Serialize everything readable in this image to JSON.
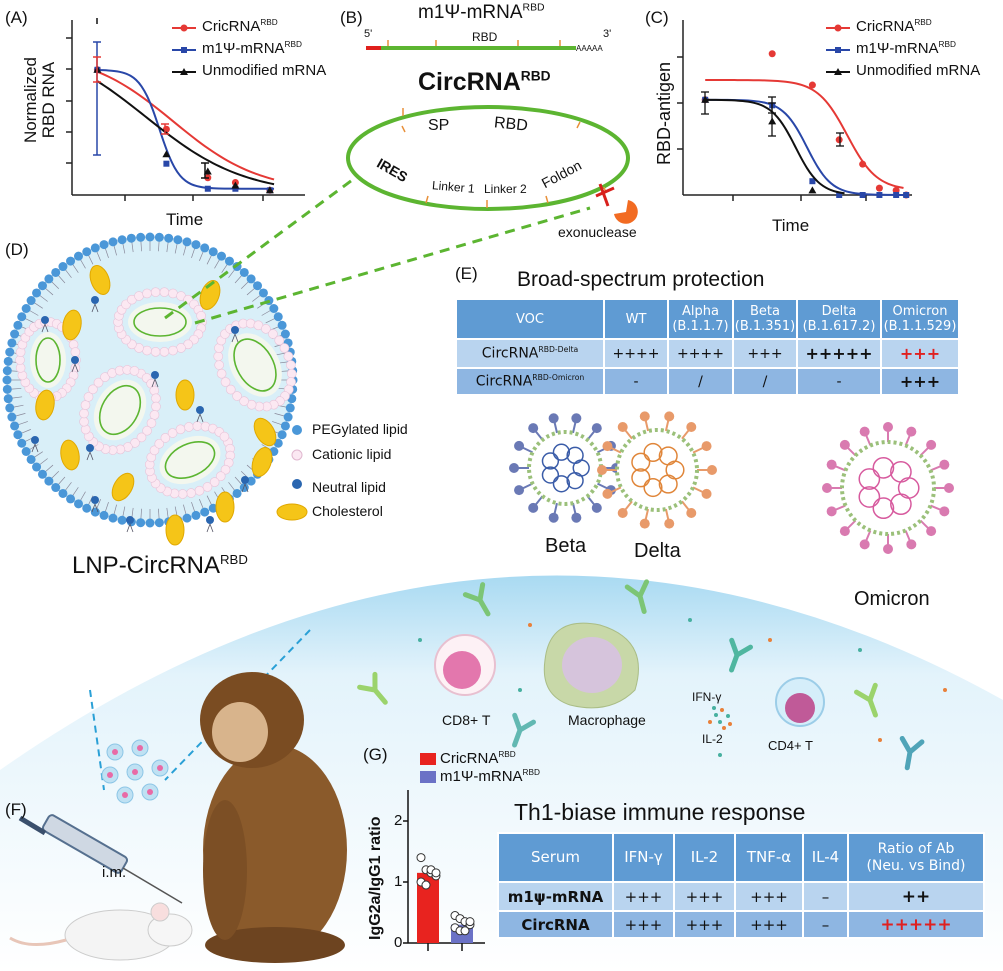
{
  "panels": {
    "a": "(A)",
    "b": "(B)",
    "c": "(C)",
    "d": "(D)",
    "e": "(E)",
    "f": "(F)",
    "g": "(G)"
  },
  "chart_data": [
    {
      "panel": "A",
      "type": "line",
      "xlabel": "Time",
      "ylabel": "Normalized RBD RNA",
      "grid": false,
      "legend": "top-right",
      "series": [
        {
          "name": "CricRNA",
          "name_sup": "RBD",
          "color": "#e53935",
          "marker": "circle",
          "x": [
            0.6,
            1.6,
            2.2,
            2.6,
            3.1
          ],
          "y": [
            4.0,
            2.1,
            0.55,
            0.4,
            0.15
          ]
        },
        {
          "name": "m1Ψ-mRNA",
          "name_sup": "RBD",
          "color": "#2947a8",
          "marker": "square",
          "x": [
            0.6,
            1.6,
            2.2,
            2.6,
            3.1
          ],
          "y": [
            4.0,
            1.0,
            0.2,
            0.2,
            0.15
          ]
        },
        {
          "name": "Unmodified mRNA",
          "name_sup": "",
          "color": "#111111",
          "marker": "triangle",
          "x": [
            0.6,
            1.6,
            2.2,
            2.6,
            3.1
          ],
          "y": [
            4.0,
            1.3,
            0.75,
            0.3,
            0.15
          ]
        }
      ]
    },
    {
      "panel": "C",
      "type": "line",
      "xlabel": "Time",
      "ylabel": "RBD-antigen",
      "grid": false,
      "legend": "top-right",
      "series": [
        {
          "name": "CricRNA",
          "name_sup": "RBD",
          "color": "#e53935",
          "marker": "circle",
          "x": [
            0.6,
            1.6,
            2.2,
            2.6,
            2.95,
            3.2,
            3.45,
            3.6
          ],
          "y": [
            2.07,
            3.07,
            2.39,
            1.2,
            0.67,
            0.15,
            0.1,
            0.0
          ]
        },
        {
          "name": "m1Ψ-mRNA",
          "name_sup": "RBD",
          "color": "#2947a8",
          "marker": "square",
          "x": [
            0.6,
            1.6,
            2.2,
            2.6,
            2.95,
            3.2,
            3.45,
            3.6
          ],
          "y": [
            2.07,
            1.95,
            0.3,
            0,
            0,
            0,
            0,
            0
          ]
        },
        {
          "name": "Unmodified mRNA",
          "name_sup": "",
          "color": "#111111",
          "marker": "triangle",
          "x": [
            0.6,
            1.6,
            2.2
          ],
          "y": [
            2.07,
            1.6,
            0.1
          ]
        }
      ]
    },
    {
      "panel": "G",
      "type": "bar",
      "ylabel": "IgG2a/IgG1 ratio",
      "yticks": [
        "0",
        "1",
        "2"
      ],
      "ylim": [
        0,
        2.5
      ],
      "legend": "top",
      "series": [
        {
          "name": "CricRNA",
          "name_sup": "RBD",
          "color": "#e8231f",
          "value": 1.15,
          "points": [
            1.4,
            1.2,
            1.15,
            1.1,
            1.0,
            0.95,
            1.2,
            1.15
          ]
        },
        {
          "name": "m1Ψ-mRNA",
          "name_sup": "RBD",
          "color": "#6b72c6",
          "value": 0.3,
          "points": [
            0.45,
            0.4,
            0.35,
            0.3,
            0.25,
            0.2,
            0.2,
            0.35
          ]
        }
      ]
    }
  ],
  "b": {
    "mrna_title": "m1Ψ-mRNA",
    "mrna_sup": "RBD",
    "five": "5'",
    "three": "3'",
    "polya": "AAAAA",
    "rbd": "RBD",
    "circ_title": "CircRNA",
    "circ_sup": "RBD",
    "sp": "SP",
    "circ_rbd": "RBD",
    "ires": "IRES",
    "linker1": "Linker 1",
    "linker2": "Linker 2",
    "foldon": "Foldon",
    "exonuclease": "exonuclease"
  },
  "d": {
    "legend": [
      "PEGylated lipid",
      "Cationic lipid",
      "Neutral lipid",
      "Cholesterol"
    ],
    "lnp_label": "LNP-CircRNA",
    "lnp_sup": "RBD"
  },
  "e": {
    "title": "Broad-spectrum protection",
    "header": [
      [
        "VOC",
        ""
      ],
      [
        "WT",
        ""
      ],
      [
        "Alpha",
        "(B.1.1.7)"
      ],
      [
        "Beta",
        "(B.1.351)"
      ],
      [
        "Delta",
        "(B.1.617.2)"
      ],
      [
        "Omicron",
        "(B.1.1.529)"
      ]
    ],
    "rows": [
      {
        "name": "CircRNA",
        "sup": "RBD-Delta",
        "cells": [
          "++++",
          "++++",
          "+++",
          "+++++",
          "+++"
        ]
      },
      {
        "name": "CircRNA",
        "sup": "RBD-Omicron",
        "cells": [
          "-",
          "/",
          "/",
          "-",
          "+++"
        ]
      }
    ],
    "viruses": [
      "Beta",
      "Delta",
      "Omicron"
    ]
  },
  "f": {
    "cells": [
      "CD8+ T",
      "Macrophage",
      "IFN-γ",
      "IL-2",
      "CD4+ T"
    ],
    "route": "i.m."
  },
  "th1": {
    "title": "Th1-biase immune response",
    "header": [
      "Serum",
      "IFN-γ",
      "IL-2",
      "TNF-α",
      "IL-4",
      "Ratio of Ab",
      "(Neu. vs Bind)"
    ],
    "rows": [
      {
        "cells": [
          "m1ψ-mRNA",
          "+++",
          "+++",
          "+++",
          "–",
          "++"
        ]
      },
      {
        "cells": [
          "CircRNA",
          "+++",
          "+++",
          "+++",
          "–",
          "+++++"
        ]
      }
    ]
  },
  "colors": {
    "red": "#e53935",
    "blue": "#2947a8",
    "green": "#5cb531",
    "table_header": "#5f9bd3",
    "orange": "#f26b22"
  }
}
